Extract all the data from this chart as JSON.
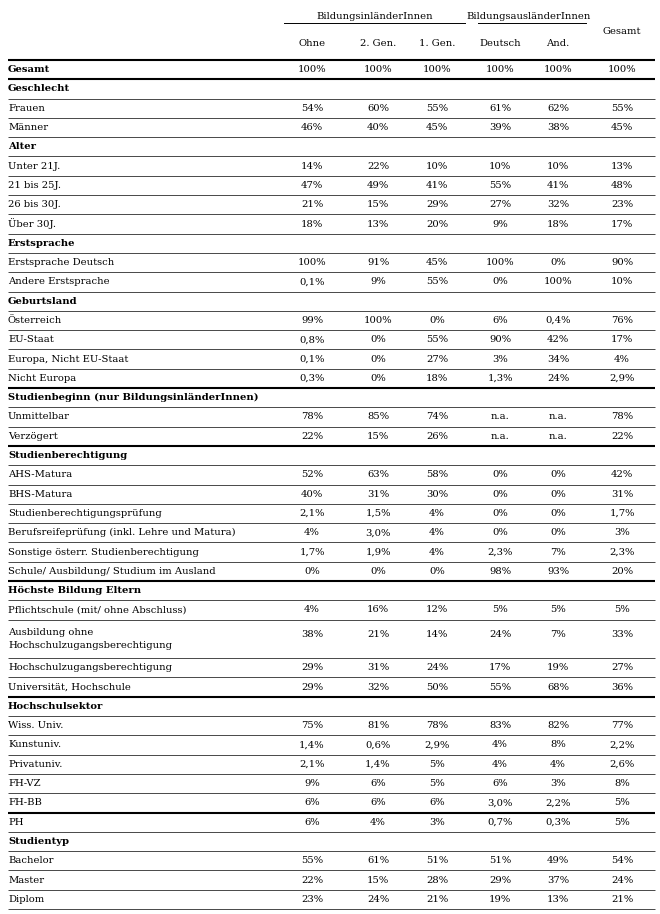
{
  "col_headers_top": [
    "BildungsinländerInnen",
    "BildungsausländerInnen"
  ],
  "col_headers_sub": [
    "Ohne",
    "2. Gen.",
    "1. Gen.",
    "Deutsch",
    "And.",
    "Gesamt"
  ],
  "rows": [
    {
      "label": "Gesamt",
      "bold": true,
      "values": [
        "100%",
        "100%",
        "100%",
        "100%",
        "100%",
        "100%"
      ],
      "section_header": false,
      "multiline": false
    },
    {
      "label": "Geschlecht",
      "bold": true,
      "values": [
        "",
        "",
        "",
        "",
        "",
        ""
      ],
      "section_header": true,
      "multiline": false
    },
    {
      "label": "Frauen",
      "bold": false,
      "values": [
        "54%",
        "60%",
        "55%",
        "61%",
        "62%",
        "55%"
      ],
      "section_header": false,
      "multiline": false
    },
    {
      "label": "Männer",
      "bold": false,
      "values": [
        "46%",
        "40%",
        "45%",
        "39%",
        "38%",
        "45%"
      ],
      "section_header": false,
      "multiline": false
    },
    {
      "label": "Alter",
      "bold": true,
      "values": [
        "",
        "",
        "",
        "",
        "",
        ""
      ],
      "section_header": true,
      "multiline": false
    },
    {
      "label": "Unter 21J.",
      "bold": false,
      "values": [
        "14%",
        "22%",
        "10%",
        "10%",
        "10%",
        "13%"
      ],
      "section_header": false,
      "multiline": false
    },
    {
      "label": "21 bis 25J.",
      "bold": false,
      "values": [
        "47%",
        "49%",
        "41%",
        "55%",
        "41%",
        "48%"
      ],
      "section_header": false,
      "multiline": false
    },
    {
      "label": "26 bis 30J.",
      "bold": false,
      "values": [
        "21%",
        "15%",
        "29%",
        "27%",
        "32%",
        "23%"
      ],
      "section_header": false,
      "multiline": false
    },
    {
      "label": "Über 30J.",
      "bold": false,
      "values": [
        "18%",
        "13%",
        "20%",
        "9%",
        "18%",
        "17%"
      ],
      "section_header": false,
      "multiline": false
    },
    {
      "label": "Erstsprache",
      "bold": true,
      "values": [
        "",
        "",
        "",
        "",
        "",
        ""
      ],
      "section_header": true,
      "multiline": false
    },
    {
      "label": "Erstsprache Deutsch",
      "bold": false,
      "values": [
        "100%",
        "91%",
        "45%",
        "100%",
        "0%",
        "90%"
      ],
      "section_header": false,
      "multiline": false
    },
    {
      "label": "Andere Erstsprache",
      "bold": false,
      "values": [
        "0,1%",
        "9%",
        "55%",
        "0%",
        "100%",
        "10%"
      ],
      "section_header": false,
      "multiline": false
    },
    {
      "label": "Geburtsland",
      "bold": true,
      "values": [
        "",
        "",
        "",
        "",
        "",
        ""
      ],
      "section_header": true,
      "multiline": false
    },
    {
      "label": "Österreich",
      "bold": false,
      "values": [
        "99%",
        "100%",
        "0%",
        "6%",
        "0,4%",
        "76%"
      ],
      "section_header": false,
      "multiline": false
    },
    {
      "label": "EU-Staat",
      "bold": false,
      "values": [
        "0,8%",
        "0%",
        "55%",
        "90%",
        "42%",
        "17%"
      ],
      "section_header": false,
      "multiline": false
    },
    {
      "label": "Europa, Nicht EU-Staat",
      "bold": false,
      "values": [
        "0,1%",
        "0%",
        "27%",
        "3%",
        "34%",
        "4%"
      ],
      "section_header": false,
      "multiline": false
    },
    {
      "label": "Nicht Europa",
      "bold": false,
      "values": [
        "0,3%",
        "0%",
        "18%",
        "1,3%",
        "24%",
        "2,9%"
      ],
      "section_header": false,
      "multiline": false
    },
    {
      "label": "Studienbeginn (nur BildungsinländerInnen)",
      "bold": true,
      "values": [
        "",
        "",
        "",
        "",
        "",
        ""
      ],
      "section_header": true,
      "multiline": false
    },
    {
      "label": "Unmittelbar",
      "bold": false,
      "values": [
        "78%",
        "85%",
        "74%",
        "n.a.",
        "n.a.",
        "78%"
      ],
      "section_header": false,
      "multiline": false
    },
    {
      "label": "Verzögert",
      "bold": false,
      "values": [
        "22%",
        "15%",
        "26%",
        "n.a.",
        "n.a.",
        "22%"
      ],
      "section_header": false,
      "multiline": false
    },
    {
      "label": "Studienberechtigung",
      "bold": true,
      "values": [
        "",
        "",
        "",
        "",
        "",
        ""
      ],
      "section_header": true,
      "multiline": false
    },
    {
      "label": "AHS-Matura",
      "bold": false,
      "values": [
        "52%",
        "63%",
        "58%",
        "0%",
        "0%",
        "42%"
      ],
      "section_header": false,
      "multiline": false
    },
    {
      "label": "BHS-Matura",
      "bold": false,
      "values": [
        "40%",
        "31%",
        "30%",
        "0%",
        "0%",
        "31%"
      ],
      "section_header": false,
      "multiline": false
    },
    {
      "label": "Studienberechtigungsprüfung",
      "bold": false,
      "values": [
        "2,1%",
        "1,5%",
        "4%",
        "0%",
        "0%",
        "1,7%"
      ],
      "section_header": false,
      "multiline": false
    },
    {
      "label": "Berufsreifeprüfung (inkl. Lehre und Matura)",
      "bold": false,
      "values": [
        "4%",
        "3,0%",
        "4%",
        "0%",
        "0%",
        "3%"
      ],
      "section_header": false,
      "multiline": false
    },
    {
      "label": "Sonstige österr. Studienberechtigung",
      "bold": false,
      "values": [
        "1,7%",
        "1,9%",
        "4%",
        "2,3%",
        "7%",
        "2,3%"
      ],
      "section_header": false,
      "multiline": false
    },
    {
      "label": "Schule/ Ausbildung/ Studium im Ausland",
      "bold": false,
      "values": [
        "0%",
        "0%",
        "0%",
        "98%",
        "93%",
        "20%"
      ],
      "section_header": false,
      "multiline": false
    },
    {
      "label": "Höchste Bildung Eltern",
      "bold": true,
      "values": [
        "",
        "",
        "",
        "",
        "",
        ""
      ],
      "section_header": true,
      "multiline": false
    },
    {
      "label": "Pflichtschule (mit/ ohne Abschluss)",
      "bold": false,
      "values": [
        "4%",
        "16%",
        "12%",
        "5%",
        "5%",
        "5%"
      ],
      "section_header": false,
      "multiline": false
    },
    {
      "label": "Ausbildung ohne\nHochschulzugangsberechtigung",
      "bold": false,
      "values": [
        "38%",
        "21%",
        "14%",
        "24%",
        "7%",
        "33%"
      ],
      "section_header": false,
      "multiline": true
    },
    {
      "label": "Hochschulzugangsberechtigung",
      "bold": false,
      "values": [
        "29%",
        "31%",
        "24%",
        "17%",
        "19%",
        "27%"
      ],
      "section_header": false,
      "multiline": false
    },
    {
      "label": "Universität, Hochschule",
      "bold": false,
      "values": [
        "29%",
        "32%",
        "50%",
        "55%",
        "68%",
        "36%"
      ],
      "section_header": false,
      "multiline": false
    },
    {
      "label": "Hochschulsektor",
      "bold": true,
      "values": [
        "",
        "",
        "",
        "",
        "",
        ""
      ],
      "section_header": true,
      "multiline": false
    },
    {
      "label": "Wiss. Univ.",
      "bold": false,
      "values": [
        "75%",
        "81%",
        "78%",
        "83%",
        "82%",
        "77%"
      ],
      "section_header": false,
      "multiline": false
    },
    {
      "label": "Kunstuniv.",
      "bold": false,
      "values": [
        "1,4%",
        "0,6%",
        "2,9%",
        "4%",
        "8%",
        "2,2%"
      ],
      "section_header": false,
      "multiline": false
    },
    {
      "label": "Privatuniv.",
      "bold": false,
      "values": [
        "2,1%",
        "1,4%",
        "5%",
        "4%",
        "4%",
        "2,6%"
      ],
      "section_header": false,
      "multiline": false
    },
    {
      "label": "FH-VZ",
      "bold": false,
      "values": [
        "9%",
        "6%",
        "5%",
        "6%",
        "3%",
        "8%"
      ],
      "section_header": false,
      "multiline": false
    },
    {
      "label": "FH-BB",
      "bold": false,
      "values": [
        "6%",
        "6%",
        "6%",
        "3,0%",
        "2,2%",
        "5%"
      ],
      "section_header": false,
      "multiline": false
    },
    {
      "label": "PH",
      "bold": false,
      "values": [
        "6%",
        "4%",
        "3%",
        "0,7%",
        "0,3%",
        "5%"
      ],
      "section_header": false,
      "multiline": false
    },
    {
      "label": "Studientyp",
      "bold": true,
      "values": [
        "",
        "",
        "",
        "",
        "",
        ""
      ],
      "section_header": true,
      "multiline": false
    },
    {
      "label": "Bachelor",
      "bold": false,
      "values": [
        "55%",
        "61%",
        "51%",
        "51%",
        "49%",
        "54%"
      ],
      "section_header": false,
      "multiline": false
    },
    {
      "label": "Master",
      "bold": false,
      "values": [
        "22%",
        "15%",
        "28%",
        "29%",
        "37%",
        "24%"
      ],
      "section_header": false,
      "multiline": false
    },
    {
      "label": "Diplom",
      "bold": false,
      "values": [
        "23%",
        "24%",
        "21%",
        "19%",
        "13%",
        "21%"
      ],
      "section_header": false,
      "multiline": false
    }
  ],
  "thick_line_after_indices": [
    0,
    16,
    19,
    26,
    31,
    37
  ],
  "bg_color": "#ffffff",
  "text_color": "#000000",
  "font_size": 7.2,
  "header_font_size": 7.2
}
